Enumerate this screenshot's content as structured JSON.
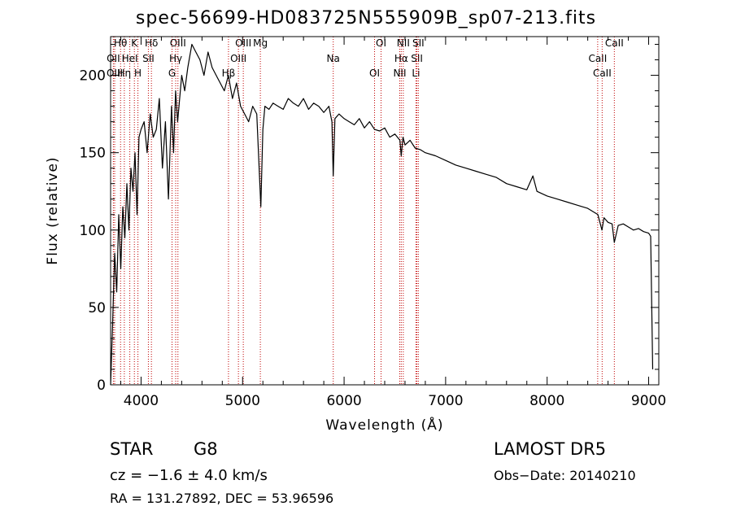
{
  "chart_data": {
    "type": "line",
    "title": "spec-56699-HD083725N555909B_sp07-213.fits",
    "xlabel": "Wavelength (Å)",
    "ylabel": "Flux (relative)",
    "xlim": [
      3700,
      9100
    ],
    "ylim": [
      0,
      225
    ],
    "x_ticks": [
      4000,
      5000,
      6000,
      7000,
      8000,
      9000
    ],
    "y_ticks": [
      0,
      50,
      100,
      150,
      200
    ],
    "grid": false,
    "line_color": "#000000",
    "marker_color": "#c00000",
    "series": [
      {
        "x": [
          3700,
          3720,
          3740,
          3760,
          3780,
          3800,
          3820,
          3840,
          3860,
          3880,
          3900,
          3920,
          3940,
          3960,
          3980,
          4000,
          4030,
          4060,
          4090,
          4120,
          4150,
          4180,
          4210,
          4240,
          4270,
          4300,
          4320,
          4340,
          4360,
          4380,
          4400,
          4430,
          4460,
          4500,
          4540,
          4580,
          4620,
          4660,
          4700,
          4740,
          4780,
          4820,
          4860,
          4900,
          4940,
          4980,
          5020,
          5060,
          5100,
          5140,
          5180,
          5200,
          5220,
          5260,
          5300,
          5350,
          5400,
          5450,
          5500,
          5550,
          5600,
          5650,
          5700,
          5750,
          5800,
          5850,
          5880,
          5893,
          5910,
          5950,
          6000,
          6050,
          6100,
          6150,
          6200,
          6250,
          6300,
          6350,
          6400,
          6450,
          6500,
          6550,
          6563,
          6580,
          6600,
          6650,
          6700,
          6750,
          6800,
          6900,
          7000,
          7100,
          7200,
          7300,
          7400,
          7500,
          7600,
          7700,
          7800,
          7860,
          7900,
          8000,
          8100,
          8200,
          8300,
          8400,
          8500,
          8540,
          8560,
          8600,
          8640,
          8662,
          8700,
          8750,
          8800,
          8850,
          8900,
          8950,
          9000,
          9020,
          9040
        ],
        "y": [
          0,
          40,
          85,
          60,
          110,
          75,
          115,
          95,
          130,
          100,
          140,
          125,
          150,
          110,
          160,
          165,
          170,
          150,
          175,
          160,
          165,
          185,
          140,
          170,
          120,
          180,
          150,
          190,
          170,
          185,
          200,
          190,
          205,
          220,
          215,
          210,
          200,
          215,
          205,
          200,
          195,
          190,
          200,
          185,
          195,
          180,
          175,
          170,
          180,
          175,
          115,
          165,
          180,
          178,
          182,
          180,
          178,
          185,
          182,
          180,
          185,
          178,
          182,
          180,
          176,
          180,
          170,
          135,
          172,
          175,
          172,
          170,
          168,
          172,
          166,
          170,
          165,
          164,
          166,
          160,
          162,
          158,
          148,
          160,
          155,
          158,
          153,
          152,
          150,
          148,
          145,
          142,
          140,
          138,
          136,
          134,
          130,
          128,
          126,
          135,
          125,
          122,
          120,
          118,
          116,
          114,
          110,
          100,
          108,
          105,
          104,
          92,
          103,
          104,
          102,
          100,
          101,
          99,
          98,
          96,
          10
        ]
      }
    ],
    "line_markers": [
      {
        "label": "Hθ",
        "x": 3798
      },
      {
        "label": "OII",
        "x": 3727
      },
      {
        "label": "OIII",
        "x": 3740
      },
      {
        "label": "K",
        "x": 3934
      },
      {
        "label": "HeI",
        "x": 3889
      },
      {
        "label": "Hη",
        "x": 3835
      },
      {
        "label": "Hδ",
        "x": 4102
      },
      {
        "label": "SII",
        "x": 4072
      },
      {
        "label": "H",
        "x": 3969
      },
      {
        "label": "OIII",
        "x": 4363
      },
      {
        "label": "Hγ",
        "x": 4341
      },
      {
        "label": "G",
        "x": 4305
      },
      {
        "label": "OIII",
        "x": 5007
      },
      {
        "label": "OIII",
        "x": 4959
      },
      {
        "label": "Hβ",
        "x": 4861
      },
      {
        "label": "Mg",
        "x": 5175
      },
      {
        "label": "Na",
        "x": 5893
      },
      {
        "label": "OI",
        "x": 6300
      },
      {
        "label": "OI",
        "x": 6364
      },
      {
        "label": "Hα",
        "x": 6563
      },
      {
        "label": "NII",
        "x": 6548
      },
      {
        "label": "NII",
        "x": 6583
      },
      {
        "label": "SII",
        "x": 6717
      },
      {
        "label": "Li",
        "x": 6708
      },
      {
        "label": "SII",
        "x": 6731
      },
      {
        "label": "CaII",
        "x": 8498
      },
      {
        "label": "CaII",
        "x": 8542
      },
      {
        "label": "CaII",
        "x": 8662
      }
    ]
  },
  "info": {
    "object_class": "STAR",
    "subclass": "G8",
    "survey": "LAMOST DR5",
    "cz": "cz = −1.6 ± 4.0 km/s",
    "obs_date": "Obs−Date: 20140210",
    "radec": "RA = 131.27892, DEC =  53.96596"
  }
}
